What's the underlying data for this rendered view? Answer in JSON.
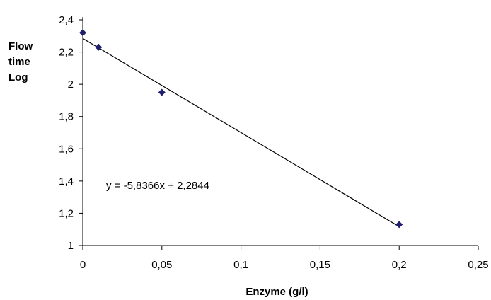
{
  "chart_data": {
    "type": "scatter",
    "xlabel": "Enzyme (g/l)",
    "ylabel_lines": [
      "Flow",
      "time",
      "Log"
    ],
    "xlim": [
      0,
      0.25
    ],
    "ylim": [
      1,
      2.4
    ],
    "x_ticks": [
      0,
      0.05,
      0.1,
      0.15,
      0.2,
      0.25
    ],
    "x_tick_labels": [
      "0",
      "0,05",
      "0,1",
      "0,15",
      "0,2",
      "0,25"
    ],
    "y_ticks": [
      1,
      1.2,
      1.4,
      1.6,
      1.8,
      2,
      2.2,
      2.4
    ],
    "y_tick_labels": [
      "1",
      "1,2",
      "1,4",
      "1,6",
      "1,8",
      "2",
      "2,2",
      "2,4"
    ],
    "grid": false,
    "legend": false,
    "series": [
      {
        "x": [
          0,
          0.01,
          0.05,
          0.2
        ],
        "y": [
          2.32,
          2.23,
          1.95,
          1.13
        ],
        "marker": "diamond",
        "color": "#1f1f6e"
      }
    ],
    "trendline": {
      "slope": -5.8366,
      "intercept": 2.2844,
      "x_range": [
        0,
        0.2
      ],
      "color": "#000000",
      "equation_label": "y = -5,8366x + 2,2844"
    }
  }
}
